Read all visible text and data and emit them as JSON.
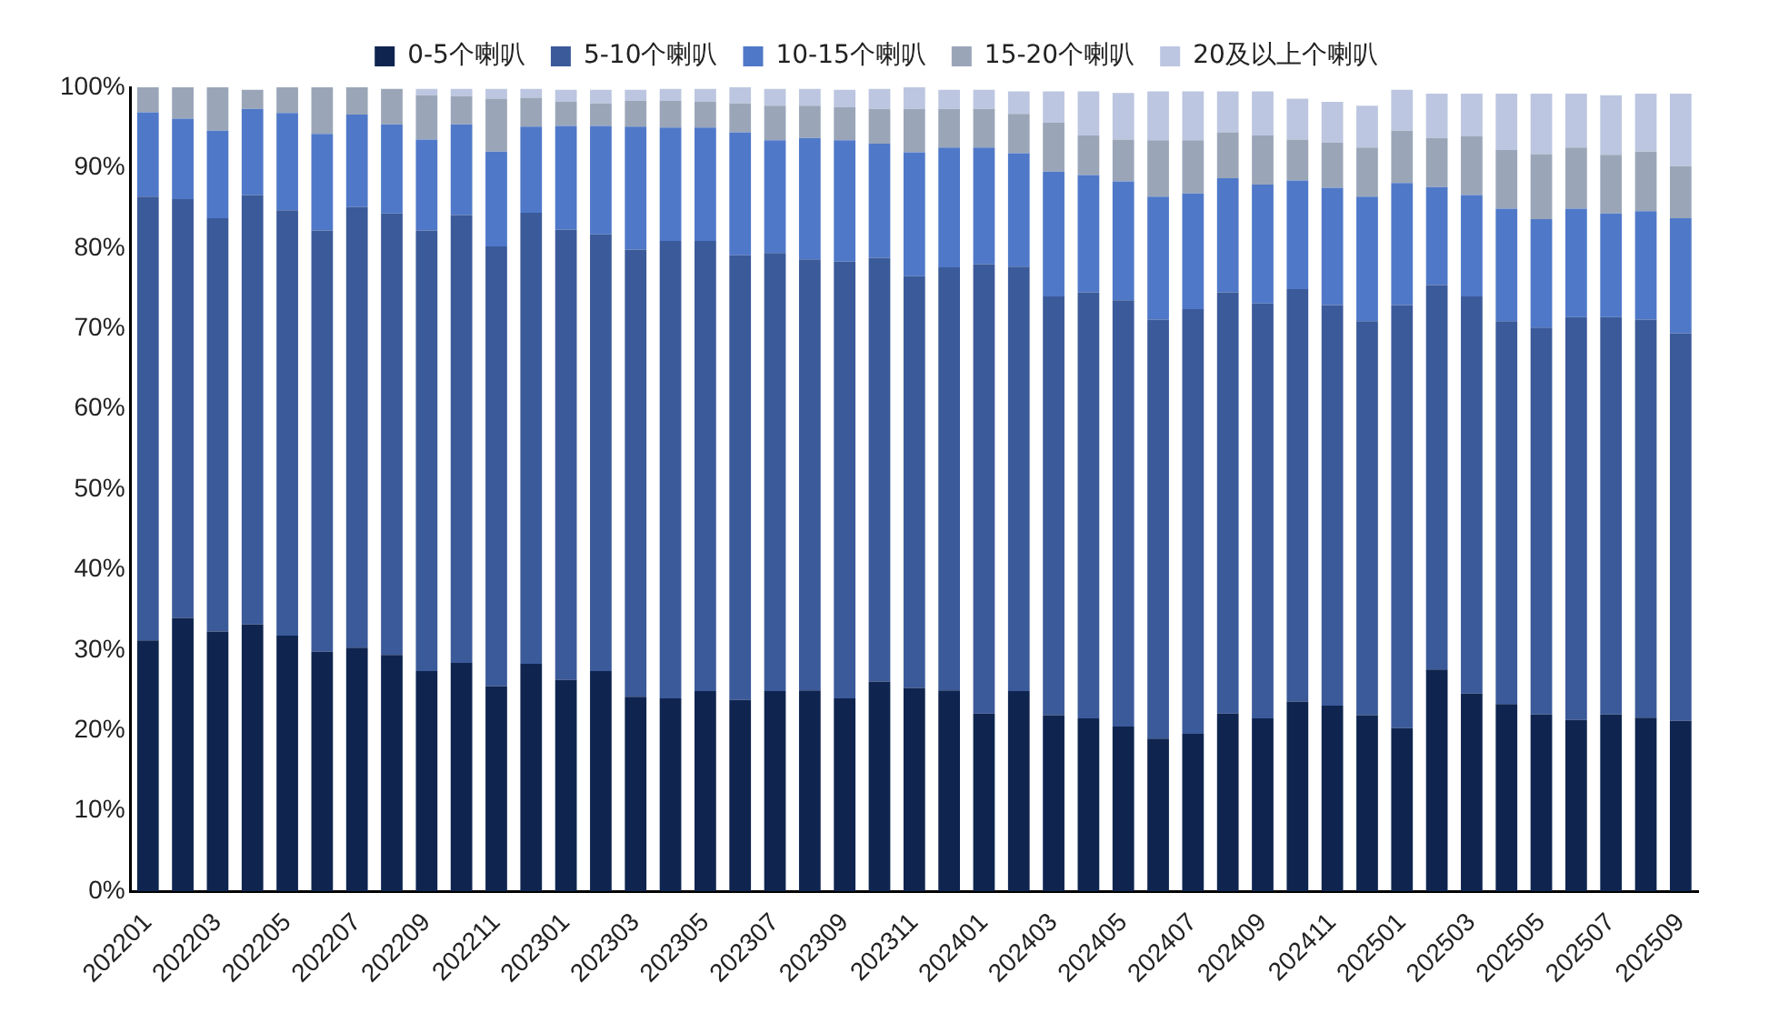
{
  "chart_data": {
    "type": "bar",
    "stacked": true,
    "legend": "top",
    "grid": false,
    "categories": [
      "202201",
      null,
      "202203",
      null,
      "202205",
      null,
      "202207",
      null,
      "202209",
      null,
      "202211",
      null,
      "202301",
      null,
      "202303",
      null,
      "202305",
      null,
      "202307",
      null,
      "202309",
      null,
      "202311",
      null,
      "202401",
      null,
      "202403",
      null,
      "202405",
      null,
      "202407",
      null,
      "202409",
      null,
      "202411",
      null,
      "202501",
      null,
      "202503",
      null,
      "202505",
      null,
      "202507",
      null,
      "202509"
    ],
    "ylim": [
      0,
      100
    ],
    "yticks": [
      {
        "value": 0,
        "label": "0%"
      },
      {
        "value": 10,
        "label": "10%"
      },
      {
        "value": 20,
        "label": "20%"
      },
      {
        "value": 30,
        "label": "30%"
      },
      {
        "value": 40,
        "label": "40%"
      },
      {
        "value": 50,
        "label": "50%"
      },
      {
        "value": 60,
        "label": "60%"
      },
      {
        "value": 70,
        "label": "70%"
      },
      {
        "value": 80,
        "label": "80%"
      },
      {
        "value": 90,
        "label": "90%"
      },
      {
        "value": 100,
        "label": "100%"
      }
    ],
    "series": [
      {
        "name": "0-5个喇叭",
        "color": "#0f2550",
        "values": [
          31.2,
          34.0,
          32.3,
          33.2,
          31.8,
          29.8,
          30.3,
          29.4,
          27.4,
          28.4,
          25.5,
          28.3,
          26.3,
          27.4,
          24.2,
          24.0,
          24.9,
          23.8,
          24.9,
          25.0,
          24.0,
          26.1,
          25.3,
          25.0,
          22.1,
          24.9,
          21.9,
          21.5,
          20.5,
          19.0,
          19.6,
          22.1,
          21.5,
          23.6,
          23.1,
          21.9,
          20.3,
          27.6,
          24.6,
          23.3,
          22.0,
          21.3,
          22.0,
          21.6,
          21.2
        ]
      },
      {
        "name": "5-10个喇叭",
        "color": "#3b5a9a",
        "values": [
          55.2,
          52.1,
          51.4,
          53.4,
          52.9,
          52.4,
          54.8,
          54.9,
          54.8,
          55.7,
          54.7,
          56.1,
          56.0,
          54.3,
          55.6,
          56.9,
          56.0,
          55.3,
          54.5,
          53.6,
          54.3,
          52.7,
          51.2,
          52.6,
          55.9,
          52.8,
          52.1,
          53.0,
          53.0,
          52.1,
          52.8,
          52.4,
          51.6,
          51.3,
          49.8,
          49.0,
          52.6,
          47.8,
          49.4,
          47.6,
          48.1,
          50.1,
          49.4,
          49.5,
          48.2
        ]
      },
      {
        "name": "10-15个喇叭",
        "color": "#4f78c8",
        "values": [
          10.5,
          10.0,
          10.9,
          10.7,
          12.1,
          12.0,
          11.5,
          11.1,
          11.3,
          11.3,
          11.8,
          10.7,
          12.9,
          13.5,
          15.3,
          14.1,
          14.1,
          15.3,
          14.0,
          15.1,
          15.1,
          14.2,
          15.4,
          14.9,
          14.5,
          14.1,
          15.5,
          14.6,
          14.8,
          15.3,
          14.4,
          14.2,
          14.8,
          13.5,
          14.6,
          15.5,
          15.2,
          12.2,
          12.6,
          14.0,
          13.5,
          13.5,
          12.9,
          13.5,
          14.3
        ]
      },
      {
        "name": "15-20个喇叭",
        "color": "#9aa6b8",
        "values": [
          3.1,
          3.9,
          5.4,
          2.4,
          3.2,
          5.8,
          3.4,
          4.4,
          5.5,
          3.5,
          6.6,
          3.6,
          3.0,
          2.8,
          3.2,
          3.3,
          3.2,
          3.6,
          4.3,
          4.0,
          4.1,
          4.3,
          5.4,
          4.8,
          4.8,
          4.9,
          6.1,
          4.9,
          5.2,
          7.0,
          6.6,
          5.7,
          6.1,
          5.1,
          5.6,
          6.1,
          6.5,
          6.1,
          7.3,
          7.3,
          8.1,
          7.6,
          7.3,
          7.4,
          6.5
        ]
      },
      {
        "name": "20及以上个喇叭",
        "color": "#bcc6e0",
        "values": [
          0,
          0,
          0,
          0,
          0,
          0,
          0,
          0,
          0.8,
          0.9,
          1.2,
          1.1,
          1.5,
          1.7,
          1.4,
          1.5,
          1.6,
          2.0,
          2.1,
          2.1,
          2.2,
          2.5,
          2.7,
          2.4,
          2.4,
          2.8,
          3.9,
          5.5,
          5.8,
          6.1,
          6.1,
          5.1,
          5.5,
          5.1,
          5.1,
          5.2,
          5.1,
          5.5,
          5.3,
          7.0,
          7.5,
          6.7,
          7.4,
          7.2,
          9.0
        ]
      }
    ]
  }
}
